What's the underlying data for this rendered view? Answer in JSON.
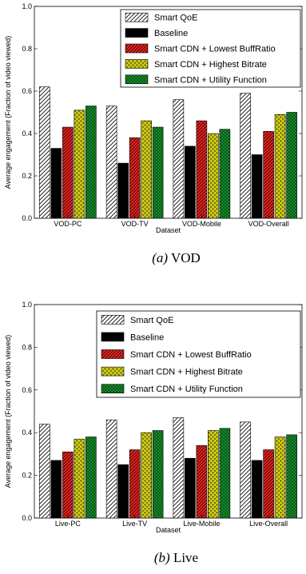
{
  "chart_data": [
    {
      "type": "bar",
      "caption_label": "(a)",
      "caption_text": "VOD",
      "xlabel": "Dataset",
      "ylabel": "Average engagement (Fraction of video viewed)",
      "ylim": [
        0.0,
        1.0
      ],
      "yticks": [
        "0.0",
        "0.2",
        "0.4",
        "0.6",
        "0.8",
        "1.0"
      ],
      "categories": [
        "VOD-PC",
        "VOD-TV",
        "VOD-Mobile",
        "VOD-Overall"
      ],
      "legend_position": "top-right",
      "series": [
        {
          "name": "Smart QoE",
          "values": [
            0.62,
            0.53,
            0.56,
            0.59
          ],
          "color": "#ffffff",
          "pattern": "diagonal"
        },
        {
          "name": "Baseline",
          "values": [
            0.33,
            0.26,
            0.34,
            0.3
          ],
          "color": "#000000",
          "pattern": "solid"
        },
        {
          "name": "Smart CDN + Lowest BuffRatio",
          "values": [
            0.43,
            0.38,
            0.46,
            0.41
          ],
          "color": "#e8231d",
          "pattern": "hatch"
        },
        {
          "name": "Smart CDN + Highest Bitrate",
          "values": [
            0.51,
            0.46,
            0.4,
            0.49
          ],
          "color": "#c8c514",
          "pattern": "dots"
        },
        {
          "name": "Smart CDN + Utility Function",
          "values": [
            0.53,
            0.43,
            0.42,
            0.5
          ],
          "color": "#159b2d",
          "pattern": "cross"
        }
      ]
    },
    {
      "type": "bar",
      "caption_label": "(b)",
      "caption_text": "Live",
      "xlabel": "Dataset",
      "ylabel": "Average engagement (Fraction of video viewed)",
      "ylim": [
        0.0,
        1.0
      ],
      "yticks": [
        "0.0",
        "0.2",
        "0.4",
        "0.6",
        "0.8",
        "1.0"
      ],
      "categories": [
        "Live-PC",
        "Live-TV",
        "Live-Mobile",
        "Live-Overall"
      ],
      "legend_position": "top-right",
      "series": [
        {
          "name": "Smart QoE",
          "values": [
            0.44,
            0.46,
            0.47,
            0.45
          ],
          "color": "#ffffff",
          "pattern": "diagonal"
        },
        {
          "name": "Baseline",
          "values": [
            0.27,
            0.25,
            0.28,
            0.27
          ],
          "color": "#000000",
          "pattern": "solid"
        },
        {
          "name": "Smart CDN + Lowest BuffRatio",
          "values": [
            0.31,
            0.32,
            0.34,
            0.32
          ],
          "color": "#e8231d",
          "pattern": "hatch"
        },
        {
          "name": "Smart CDN + Highest Bitrate",
          "values": [
            0.37,
            0.4,
            0.41,
            0.38
          ],
          "color": "#c8c514",
          "pattern": "dots"
        },
        {
          "name": "Smart CDN + Utility Function",
          "values": [
            0.38,
            0.41,
            0.42,
            0.39
          ],
          "color": "#159b2d",
          "pattern": "cross"
        }
      ]
    }
  ]
}
